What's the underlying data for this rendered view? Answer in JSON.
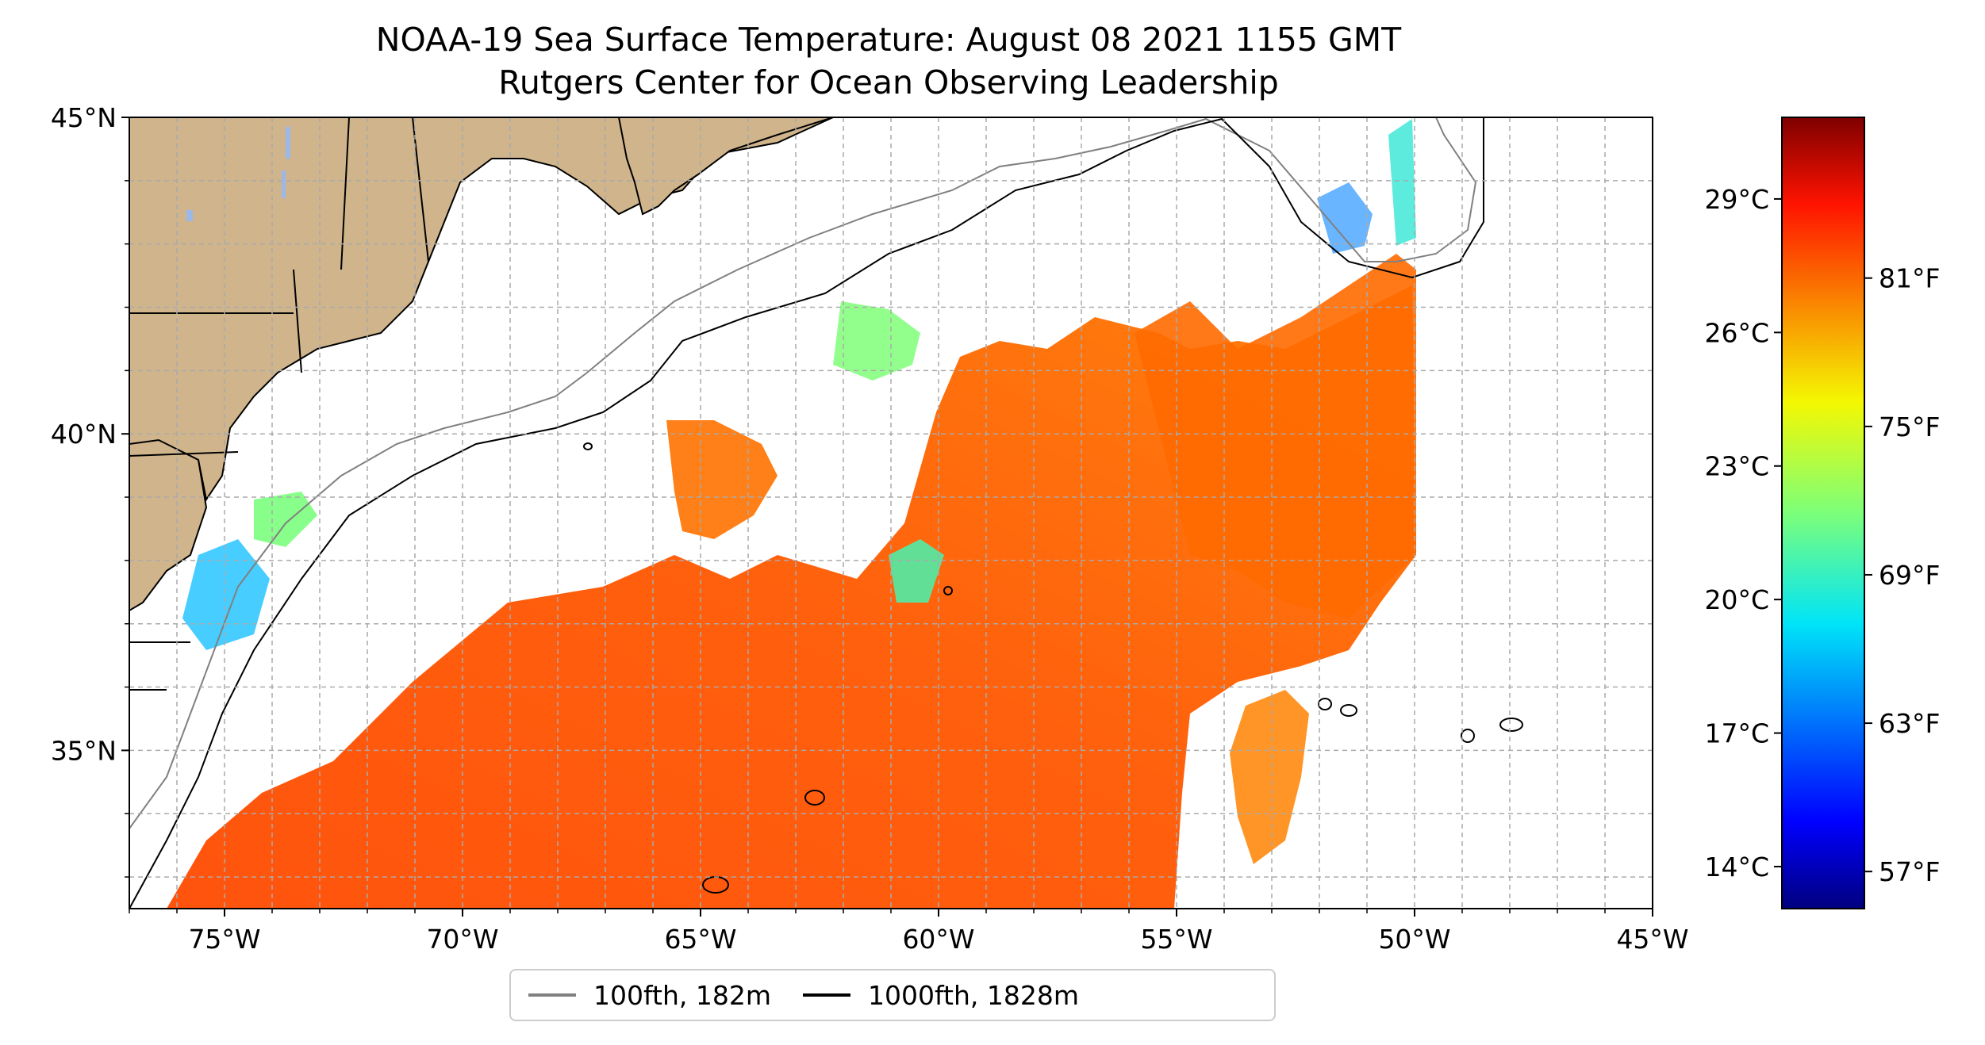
{
  "title": {
    "line1": "NOAA-19 Sea Surface Temperature: August 08 2021 1155 GMT",
    "line2": "Rutgers Center for Ocean Observing Leadership"
  },
  "map": {
    "lon_range": [
      -77,
      -45
    ],
    "lat_range": [
      32.5,
      45
    ],
    "x_tick_labels": [
      "75°W",
      "70°W",
      "65°W",
      "60°W",
      "55°W",
      "50°W",
      "45°W"
    ],
    "x_tick_values": [
      -75,
      -70,
      -65,
      -60,
      -55,
      -50,
      -45
    ],
    "y_tick_labels": [
      "45°N",
      "40°N",
      "35°N"
    ],
    "y_tick_values": [
      45,
      40,
      35
    ],
    "gridlines": true,
    "land_color": "#cfb48c",
    "lake_color": "#9cb8e8",
    "data_edge_longitude": -50
  },
  "colorbar": {
    "colormap": "jet",
    "celsius_labels": [
      "29°C",
      "26°C",
      "23°C",
      "20°C",
      "17°C",
      "14°C"
    ],
    "celsius_values": [
      29,
      26,
      23,
      20,
      17,
      14
    ],
    "fahrenheit_labels": [
      "81°F",
      "75°F",
      "69°F",
      "63°F",
      "57°F"
    ],
    "fahrenheit_values": [
      81,
      75,
      69,
      63,
      57
    ],
    "range_f": [
      55.5,
      87.5
    ]
  },
  "legend": {
    "placement": "bottom-center",
    "items": [
      {
        "label": "100fth, 182m",
        "color": "#808080"
      },
      {
        "label": "1000fth, 1828m",
        "color": "#000000"
      }
    ]
  }
}
